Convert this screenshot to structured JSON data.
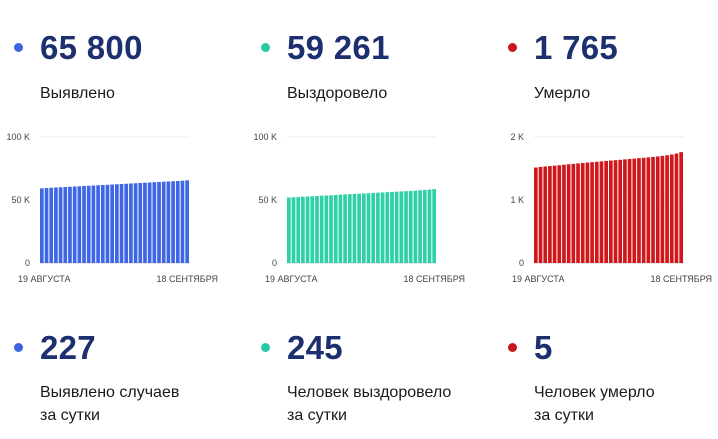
{
  "panels": [
    {
      "total": "65 800",
      "total_label": "Выявлено",
      "daily": "227",
      "daily_label_1": "Выявлено случаев",
      "daily_label_2": "за сутки",
      "color": "#3f66e4",
      "dot_color": "#3e63e0"
    },
    {
      "total": "59 261",
      "total_label": "Выздоровело",
      "daily": "245",
      "daily_label_1": "Человек выздоровело",
      "daily_label_2": "за сутки",
      "color": "#2ed0a6",
      "dot_color": "#26c9a1"
    },
    {
      "total": "1 765",
      "total_label": "Умерло",
      "daily": "5",
      "daily_label_1": "Человек умерло",
      "daily_label_2": "за сутки",
      "color": "#d0181c",
      "dot_color": "#c8161c"
    }
  ],
  "chart_data": [
    {
      "type": "bar",
      "series": [
        {
          "values": [
            59200,
            59500,
            59700,
            59900,
            60100,
            60300,
            60500,
            60700,
            60900,
            61100,
            61300,
            61500,
            61700,
            61900,
            62100,
            62300,
            62500,
            62700,
            62900,
            63100,
            63300,
            63500,
            63700,
            63900,
            64100,
            64300,
            64500,
            64700,
            64900,
            65100,
            65300,
            65600
          ]
        }
      ],
      "xlim_labels": [
        "19 АВГУСТА",
        "18 СЕНТЯБРЯ"
      ],
      "ylim": [
        0,
        100000
      ],
      "yticks": [
        0,
        50000,
        100000
      ],
      "ytick_labels": [
        "0",
        "50 K",
        "100 K"
      ]
    },
    {
      "type": "bar",
      "series": [
        {
          "values": [
            52000,
            52200,
            52400,
            52600,
            52800,
            53000,
            53200,
            53400,
            53600,
            53800,
            54000,
            54200,
            54400,
            54600,
            54800,
            55000,
            55200,
            55400,
            55600,
            55800,
            56000,
            56200,
            56400,
            56600,
            56800,
            57000,
            57200,
            57400,
            57700,
            58000,
            58300,
            58700
          ]
        }
      ],
      "xlim_labels": [
        "19 АВГУСТА",
        "18 СЕНТЯБРЯ"
      ],
      "ylim": [
        0,
        100000
      ],
      "yticks": [
        0,
        50000,
        100000
      ],
      "ytick_labels": [
        "0",
        "50 K",
        "100 K"
      ]
    },
    {
      "type": "bar",
      "series": [
        {
          "values": [
            1515,
            1525,
            1532,
            1538,
            1545,
            1552,
            1560,
            1567,
            1574,
            1580,
            1587,
            1594,
            1600,
            1607,
            1613,
            1620,
            1626,
            1632,
            1638,
            1645,
            1651,
            1657,
            1664,
            1670,
            1677,
            1684,
            1691,
            1700,
            1710,
            1722,
            1738,
            1760
          ]
        }
      ],
      "xlim_labels": [
        "19 АВГУСТА",
        "18 СЕНТЯБРЯ"
      ],
      "ylim": [
        0,
        2000
      ],
      "yticks": [
        0,
        1000,
        2000
      ],
      "ytick_labels": [
        "0",
        "1 K",
        "2 K"
      ]
    }
  ]
}
